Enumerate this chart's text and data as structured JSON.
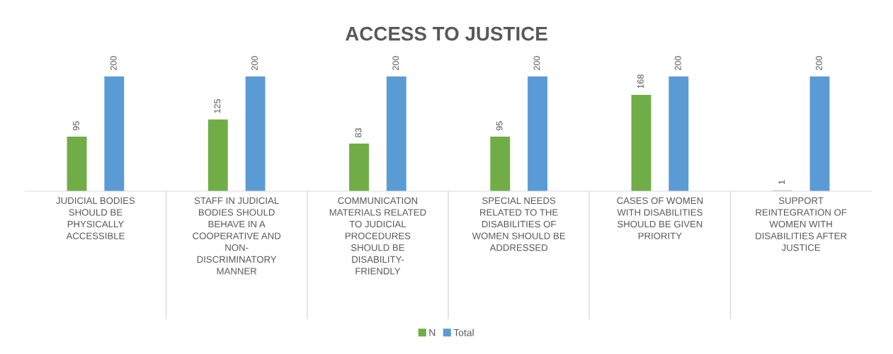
{
  "chart_data": {
    "type": "bar",
    "title": "ACCESS TO JUSTICE",
    "categories": [
      "JUDICIAL BODIES\nSHOULD BE\nPHYSICALLY\nACCESSIBLE",
      "STAFF IN JUDICIAL\nBODIES SHOULD\nBEHAVE IN A\nCOOPERATIVE AND\nNON-\nDISCRIMINATORY\nMANNER",
      "COMMUNICATION\nMATERIALS RELATED\nTO JUDICIAL\nPROCEDURES\nSHOULD BE\nDISABILITY-\nFRIENDLY",
      "SPECIAL NEEDS\nRELATED TO THE\nDISABILITIES OF\nWOMEN SHOULD BE\nADDRESSED",
      "CASES OF WOMEN\nWITH DISABILITIES\nSHOULD BE GIVEN\nPRIORITY",
      "SUPPORT\nREINTEGRATION OF\nWOMEN WITH\nDISABILITIES AFTER\nJUSTICE"
    ],
    "series": [
      {
        "name": "N",
        "color": "#70ad47",
        "values": [
          95,
          125,
          83,
          95,
          168,
          1
        ]
      },
      {
        "name": "Total",
        "color": "#5b9bd5",
        "values": [
          200,
          200,
          200,
          200,
          200,
          200
        ]
      }
    ],
    "data_labels": true,
    "legend": "bottom"
  }
}
